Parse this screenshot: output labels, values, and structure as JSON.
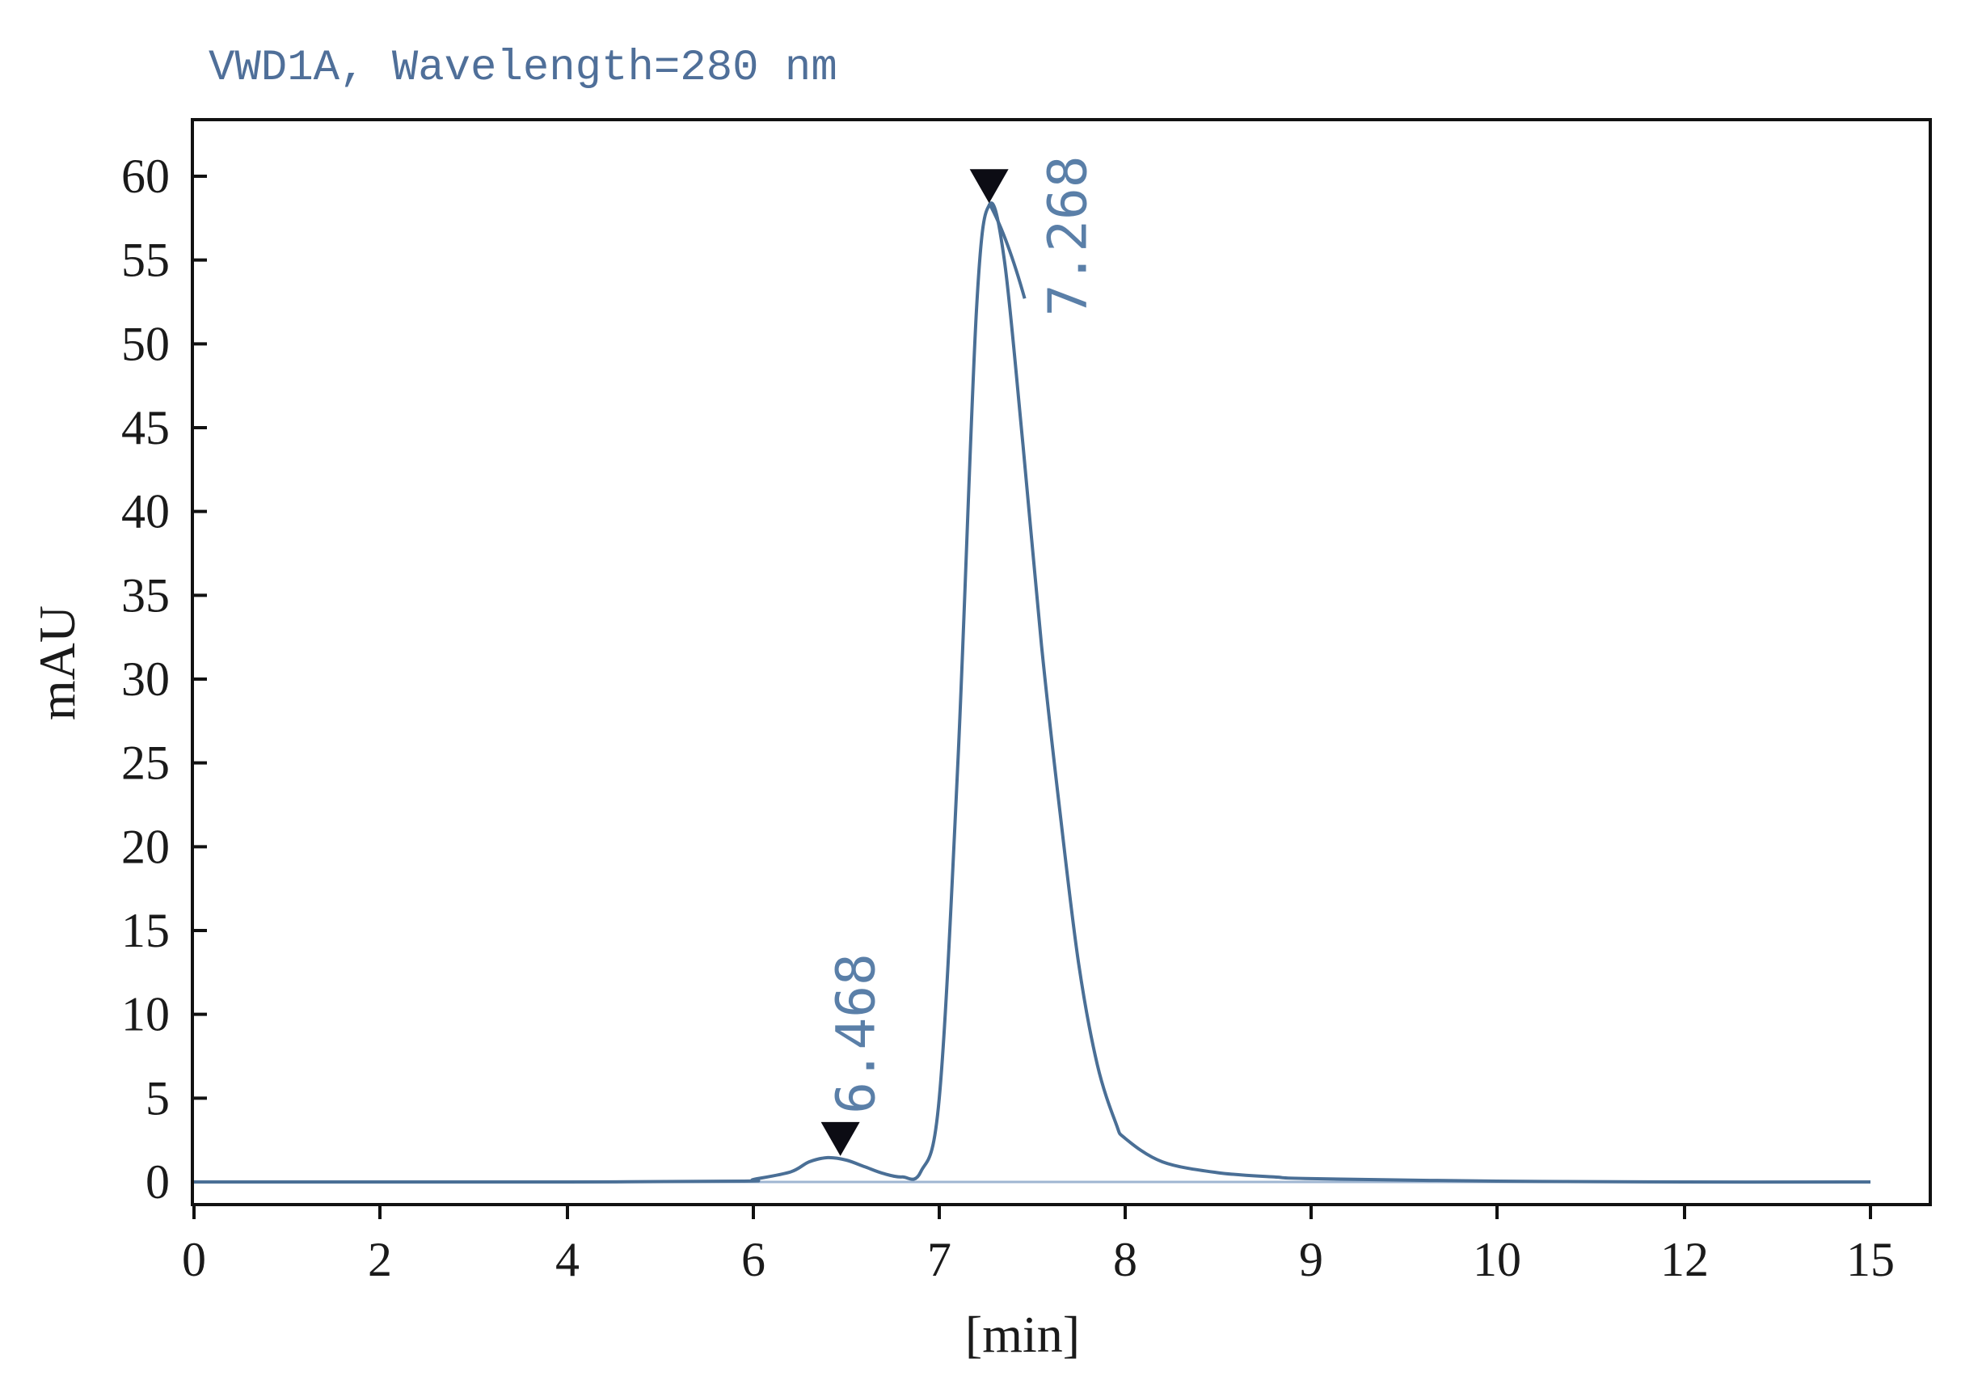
{
  "chart_data": {
    "type": "line",
    "title": "VWD1A, Wavelength=280 nm",
    "xlabel": "[min]",
    "ylabel": "mAU",
    "x_ticks": [
      0,
      2,
      4,
      6,
      7,
      8,
      9,
      10,
      12,
      15
    ],
    "x_tick_labels": [
      "0",
      "2",
      "4",
      "6",
      "7",
      "8",
      "9",
      "10",
      "12",
      "15"
    ],
    "y_ticks": [
      0,
      5,
      10,
      15,
      20,
      25,
      30,
      35,
      40,
      45,
      50,
      55,
      60
    ],
    "y_tick_labels": [
      "0",
      "5",
      "10",
      "15",
      "20",
      "25",
      "30",
      "35",
      "40",
      "45",
      "50",
      "55",
      "60"
    ],
    "ylim": [
      -1.2,
      63
    ],
    "grid": false,
    "series": [
      {
        "x": [
          "0",
          "2",
          "4",
          "5.9",
          "6.0",
          "6.2",
          "6.3",
          "6.4",
          "6.5",
          "6.6",
          "6.7",
          "6.8",
          "6.9",
          "7.0",
          "7.1",
          "7.2",
          "7.27",
          "7.35",
          "7.45",
          "7.55",
          "7.65",
          "7.75",
          "7.85",
          "7.95",
          "8.0",
          "8.2",
          "8.5",
          "8.8",
          "9",
          "10",
          "12",
          "15"
        ],
        "y": [
          0,
          0,
          0,
          0.05,
          0.15,
          0.6,
          1.2,
          1.45,
          1.3,
          0.9,
          0.5,
          0.3,
          0.6,
          5,
          25,
          52,
          58.3,
          55,
          44,
          32,
          22,
          13,
          7,
          3.5,
          2.6,
          1.2,
          0.55,
          0.3,
          0.2,
          0.05,
          0,
          0
        ],
        "color": "#4a6f96"
      }
    ],
    "peaks": [
      {
        "retention_time": "6.468",
        "label": "6.468",
        "height": 1.45
      },
      {
        "retention_time": "7.268",
        "label": "7.268",
        "height": 58.3
      }
    ],
    "colors": {
      "trace": "#4a6f96",
      "baseline": "#9fb6d2",
      "label": "#5a7fa8",
      "title": "#4f6f99",
      "frame": "#111111",
      "marker": "#0c0c14"
    }
  }
}
